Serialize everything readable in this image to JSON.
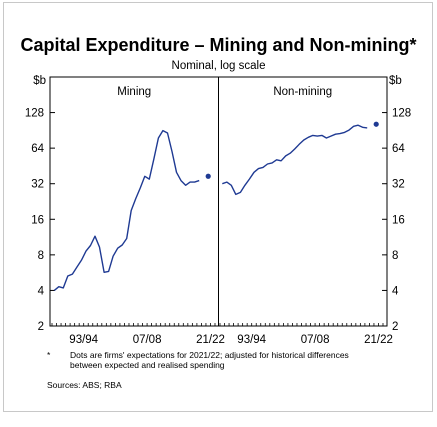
{
  "chart_data": {
    "type": "line",
    "title": "Capital Expenditure – Mining and Non-mining*",
    "subtitle": "Nominal, log scale",
    "yunit_left": "$b",
    "yunit_right": "$b",
    "yscale": "log2",
    "ylim": [
      2,
      256
    ],
    "yticks": [
      "2",
      "4",
      "8",
      "16",
      "32",
      "64",
      "128"
    ],
    "xtick_labels": [
      "93/94",
      "07/08",
      "21/22"
    ],
    "grid": false,
    "panels": [
      {
        "name": "Mining",
        "series": [
          {
            "line_color": "#1f3a93",
            "x": [
              1987.5,
              1988.5,
              1989.5,
              1990.5,
              1991.5,
              1992.5,
              1993.5,
              1994.5,
              1995.5,
              1996.5,
              1997.5,
              1998.5,
              1999.5,
              2000.5,
              2001.5,
              2002.5,
              2003.5,
              2004.5,
              2005.5,
              2006.5,
              2007.5,
              2008.5,
              2009.5,
              2010.5,
              2011.5,
              2012.5,
              2013.5,
              2014.5,
              2015.5,
              2016.5,
              2017.5,
              2018.5,
              2019.5
            ],
            "y": [
              4.0,
              4.3,
              4.2,
              5.3,
              5.5,
              6.3,
              7.2,
              8.6,
              9.6,
              11.5,
              9.3,
              5.7,
              5.8,
              7.8,
              9.1,
              9.7,
              11.0,
              19.0,
              24.0,
              29.5,
              37.0,
              35.0,
              52.0,
              78.0,
              90.0,
              86.0,
              60.0,
              40.0,
              34.0,
              31.0,
              33.0,
              33.0,
              34.0
            ]
          }
        ],
        "expectation": {
          "x": 2021.5,
          "y": 37.0
        }
      },
      {
        "name": "Non-mining",
        "series": [
          {
            "line_color": "#1f3a93",
            "x": [
              1987.5,
              1988.5,
              1989.5,
              1990.5,
              1991.5,
              1992.5,
              1993.5,
              1994.5,
              1995.5,
              1996.5,
              1997.5,
              1998.5,
              1999.5,
              2000.5,
              2001.5,
              2002.5,
              2003.5,
              2004.5,
              2005.5,
              2006.5,
              2007.5,
              2008.5,
              2009.5,
              2010.5,
              2011.5,
              2012.5,
              2013.5,
              2014.5,
              2015.5,
              2016.5,
              2017.5,
              2018.5,
              2019.5
            ],
            "y": [
              32.0,
              33.0,
              31.0,
              26.0,
              27.0,
              31.0,
              35.0,
              40.0,
              43.0,
              44.0,
              47.0,
              48.0,
              51.0,
              50.0,
              55.0,
              58.0,
              63.0,
              69.0,
              75.0,
              79.0,
              82.0,
              81.0,
              82.0,
              78.0,
              81.0,
              84.0,
              85.0,
              87.0,
              91.0,
              98.0,
              100.0,
              96.0,
              95.0
            ]
          }
        ],
        "expectation": {
          "x": 2021.5,
          "y": 102.0
        }
      }
    ],
    "footnote_marker": "*",
    "footnote": "Dots are firms' expectations for 2021/22; adjusted for historical differences between expected and realised spending",
    "sources": "Sources: ABS; RBA"
  }
}
